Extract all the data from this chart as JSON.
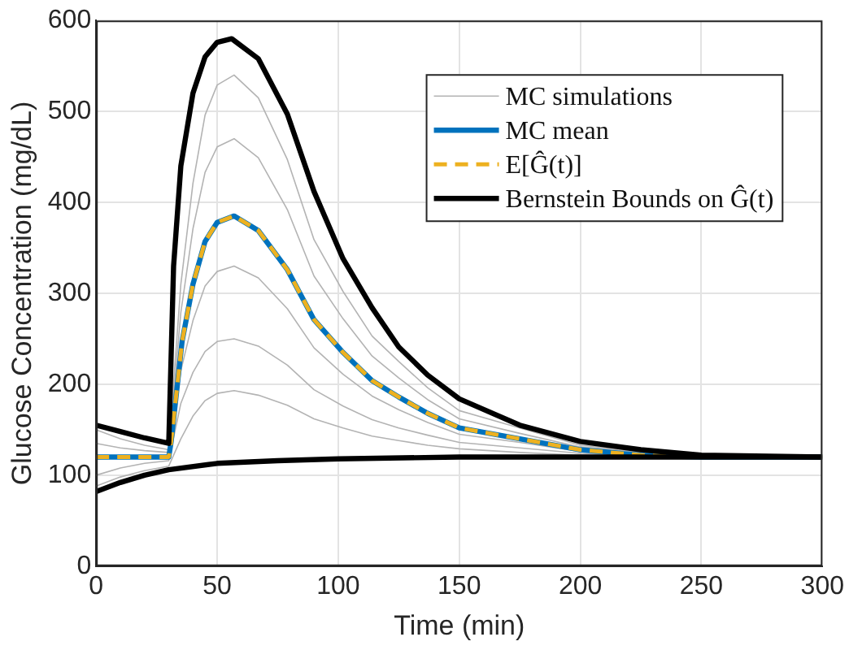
{
  "chart_data": {
    "type": "line",
    "xlabel": "Time (min)",
    "ylabel": "Glucose Concentration (mg/dL)",
    "xlim": [
      0,
      300
    ],
    "xticks": [
      0,
      50,
      100,
      150,
      200,
      250,
      300
    ],
    "ylim": [
      0,
      600
    ],
    "yticks": [
      0,
      100,
      200,
      300,
      400,
      500,
      600
    ],
    "grid": true,
    "legend": "top right",
    "marker": "none",
    "series": [
      {
        "name": "MC simulations",
        "color": "#b3b3b3",
        "line_style": "solid",
        "x": [
          0,
          10,
          20,
          30,
          35,
          40,
          45,
          50,
          57,
          67,
          79,
          90,
          102,
          114,
          125,
          137,
          150,
          175,
          200,
          250,
          300
        ],
        "values": [
          150,
          140,
          133,
          128,
          310,
          421,
          496,
          529,
          540,
          515,
          447,
          359,
          302,
          253,
          225,
          196,
          171,
          152,
          133,
          120,
          120
        ]
      },
      {
        "color": "#b3b3b3",
        "line_style": "solid",
        "x": [
          0,
          10,
          20,
          30,
          35,
          40,
          45,
          50,
          57,
          67,
          79,
          90,
          102,
          114,
          125,
          137,
          150,
          175,
          200,
          250,
          300
        ],
        "values": [
          135,
          130,
          127,
          125,
          279,
          371,
          433,
          461,
          470,
          449,
          392,
          319,
          272,
          231,
          207,
          183,
          162,
          146,
          131,
          120,
          120
        ]
      },
      {
        "color": "#b3b3b3",
        "line_style": "solid",
        "x": [
          0,
          10,
          20,
          30,
          35,
          40,
          45,
          50,
          57,
          67,
          79,
          90,
          102,
          114,
          125,
          137,
          150,
          175,
          200,
          250,
          300
        ],
        "values": [
          118,
          119,
          120,
          120,
          215,
          270,
          308,
          324,
          330,
          317,
          283,
          240,
          211,
          187,
          172,
          158,
          145,
          136,
          126,
          120,
          120
        ]
      },
      {
        "color": "#b3b3b3",
        "line_style": "solid",
        "x": [
          0,
          10,
          20,
          30,
          35,
          40,
          45,
          50,
          57,
          67,
          79,
          90,
          102,
          114,
          125,
          137,
          150,
          175,
          200,
          250,
          300
        ],
        "values": [
          100,
          108,
          113,
          116,
          179,
          213,
          236,
          247,
          250,
          242,
          221,
          194,
          176,
          161,
          152,
          144,
          136,
          130,
          124,
          120,
          120
        ]
      },
      {
        "color": "#b3b3b3",
        "line_style": "solid",
        "x": [
          0,
          10,
          20,
          30,
          35,
          40,
          45,
          50,
          57,
          67,
          79,
          90,
          102,
          114,
          125,
          137,
          150,
          175,
          200,
          250,
          300
        ],
        "values": [
          88,
          98,
          105,
          110,
          140,
          165,
          182,
          190,
          193,
          188,
          177,
          162,
          152,
          143,
          138,
          133,
          129,
          125,
          122,
          120,
          120
        ]
      },
      {
        "name": "MC mean",
        "color": "#0072bd",
        "line_style": "solid",
        "x": [
          0,
          30,
          31,
          35.5,
          40,
          45,
          50,
          57,
          67,
          79,
          90,
          102,
          114,
          125,
          137,
          150,
          175,
          200,
          225,
          250,
          300
        ],
        "values": [
          120,
          120,
          137,
          247,
          310,
          357,
          378,
          385,
          369,
          326,
          271,
          235,
          204,
          186,
          168,
          152,
          140,
          128,
          122,
          120,
          120
        ]
      },
      {
        "name": "E[Ĝ(t)]",
        "color": "#edb120",
        "line_style": "dashed",
        "x": [
          0,
          30,
          31,
          35.5,
          40,
          45,
          50,
          57,
          67,
          79,
          90,
          102,
          114,
          125,
          137,
          150,
          175,
          200,
          225,
          250,
          300
        ],
        "values": [
          120,
          120,
          137,
          247,
          310,
          357,
          378,
          385,
          369,
          326,
          271,
          235,
          204,
          186,
          168,
          152,
          140,
          128,
          122,
          120,
          120
        ]
      },
      {
        "name": "Bernstein Bounds on Ĝ(t)",
        "color": "#000000",
        "line_style": "solid",
        "x": [
          0,
          10,
          20,
          30,
          32,
          35,
          40,
          45,
          50,
          56,
          67,
          79,
          90,
          102,
          114,
          125,
          137,
          150,
          175,
          200,
          225,
          250,
          300
        ],
        "values": [
          155,
          148,
          141,
          135,
          330,
          440,
          520,
          560,
          576,
          580,
          558,
          497,
          412,
          338,
          284,
          241,
          210,
          184,
          155,
          137,
          128,
          122,
          120
        ]
      },
      {
        "color": "#000000",
        "line_style": "solid",
        "x": [
          0,
          10,
          20,
          30,
          50,
          75,
          100,
          150,
          300
        ],
        "values": [
          82,
          92,
          100,
          106,
          113,
          116,
          118,
          120,
          120
        ]
      }
    ]
  }
}
